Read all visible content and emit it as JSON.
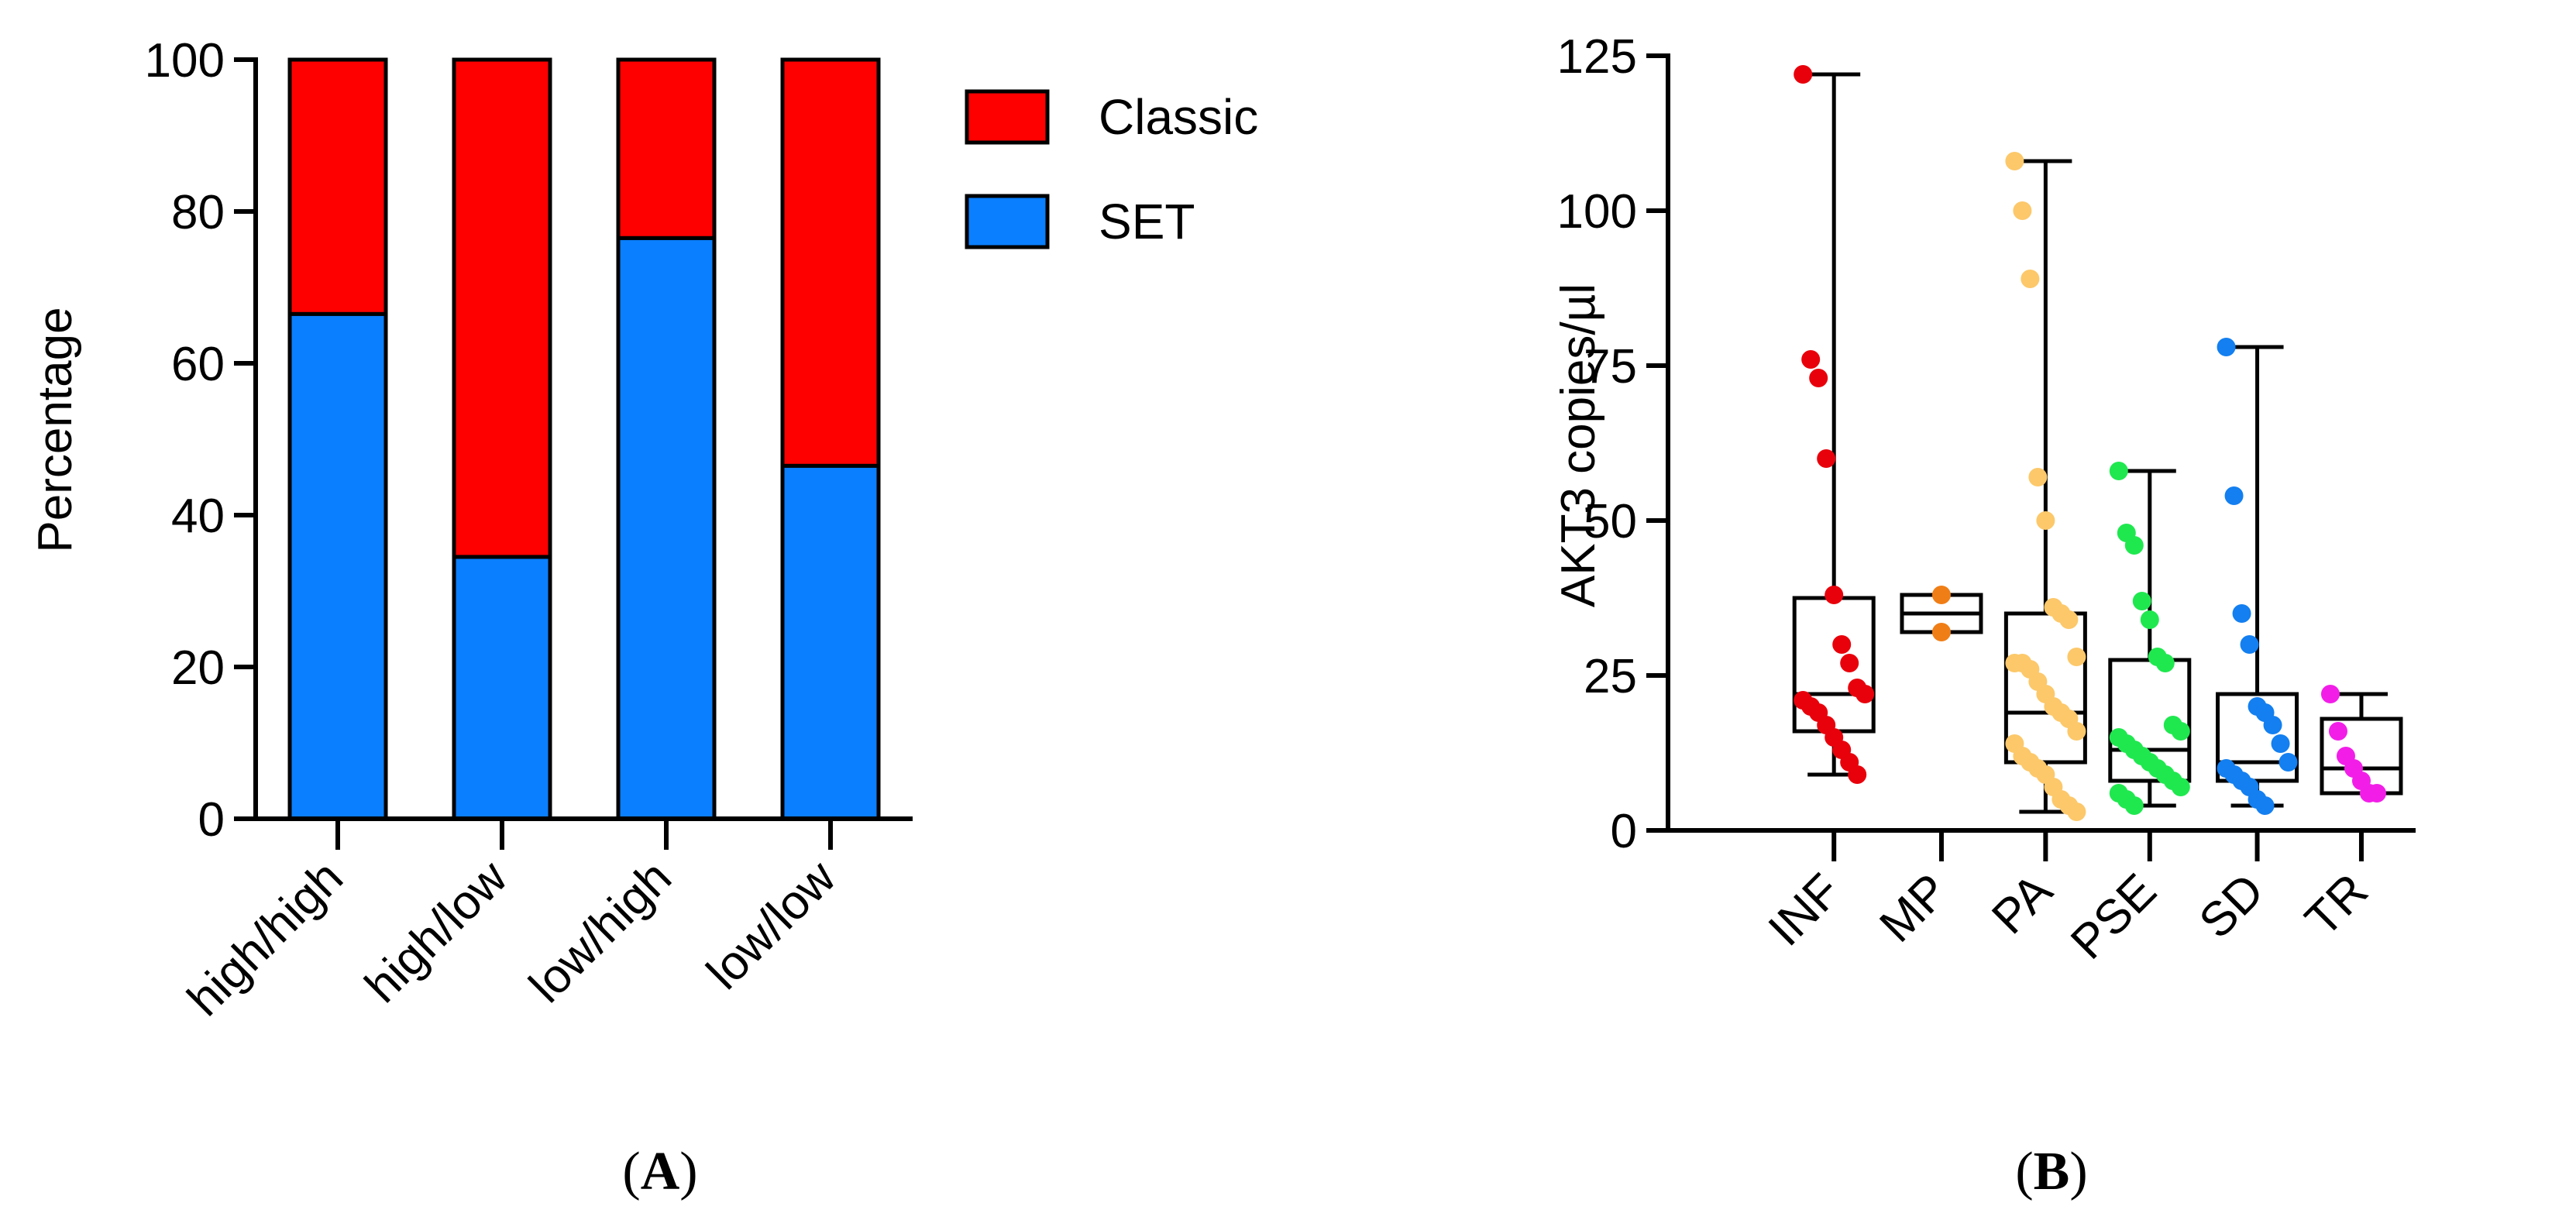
{
  "chart_data": [
    {
      "type": "bar",
      "stacked": true,
      "panel_label": "A",
      "title": "",
      "xlabel": "",
      "ylabel": "Percentage",
      "ylim": [
        0,
        100
      ],
      "yticks": [
        0,
        20,
        40,
        60,
        80,
        100
      ],
      "categories": [
        "high/high",
        "high/low",
        "low/high",
        "low/low"
      ],
      "series": [
        {
          "name": "SET",
          "color": "#0a7fff",
          "values": [
            66.5,
            34.5,
            76.5,
            46.5
          ]
        },
        {
          "name": "Classic",
          "color": "#ff0000",
          "values": [
            33.5,
            65.5,
            23.5,
            53.5
          ]
        }
      ],
      "legend": {
        "position": "top-right",
        "entries": [
          "Classic",
          "SET"
        ]
      },
      "grid": false
    },
    {
      "type": "box",
      "panel_label": "B",
      "title": "",
      "xlabel": "",
      "ylabel": "AKT3 copies/µl",
      "ylim": [
        0,
        125
      ],
      "yticks": [
        0,
        25,
        50,
        75,
        100,
        125
      ],
      "grid": false,
      "groups": [
        {
          "name": "INF",
          "color": "#e8000b",
          "min": 9,
          "q1": 16,
          "median": 22,
          "q3": 37.5,
          "max": 122,
          "points": [
            122,
            76,
            73,
            60,
            38,
            30,
            27,
            23,
            22,
            21,
            20,
            19,
            17,
            15,
            13,
            11,
            9
          ]
        },
        {
          "name": "MP",
          "color": "#f07e16",
          "min": 32,
          "q1": 32,
          "median": 35,
          "q3": 38,
          "max": 38,
          "points": [
            38,
            32
          ]
        },
        {
          "name": "PA",
          "color": "#fcc86a",
          "min": 3,
          "q1": 11,
          "median": 19,
          "q3": 35,
          "max": 108,
          "points": [
            108,
            100,
            89,
            57,
            50,
            36,
            35,
            34,
            28,
            27,
            27,
            26,
            24,
            22,
            20,
            19,
            18,
            16,
            14,
            12,
            11,
            10,
            9,
            7,
            5,
            4,
            3
          ]
        },
        {
          "name": "PSE",
          "color": "#1fe84f",
          "min": 4,
          "q1": 8,
          "median": 13,
          "q3": 27.5,
          "max": 58,
          "points": [
            58,
            48,
            46,
            37,
            34,
            28,
            27,
            17,
            16,
            15,
            14,
            13,
            12,
            11,
            10,
            9,
            8,
            7,
            6,
            5,
            4
          ]
        },
        {
          "name": "SD",
          "color": "#137ff0",
          "min": 4,
          "q1": 8,
          "median": 11,
          "q3": 22,
          "max": 78,
          "points": [
            78,
            54,
            35,
            30,
            20,
            19,
            17,
            14,
            11,
            10,
            9,
            8,
            7,
            5,
            4
          ]
        },
        {
          "name": "TR",
          "color": "#f21ee8",
          "min": 6,
          "q1": 6,
          "median": 10,
          "q3": 18,
          "max": 22,
          "points": [
            22,
            16,
            12,
            10,
            8,
            6,
            6
          ]
        }
      ]
    }
  ]
}
